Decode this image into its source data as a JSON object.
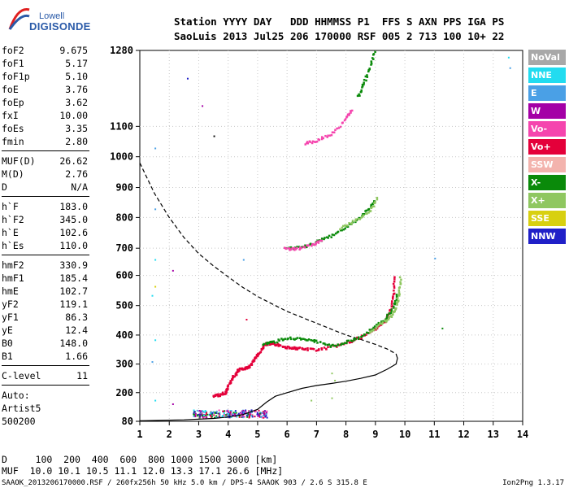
{
  "logo": {
    "line1": "Lowell",
    "line2": "DIGISONDE"
  },
  "header": {
    "line1": "Station YYYY DAY   DDD HHMMSS P1  FFS S AXN PPS IGA PS",
    "line2": "SaoLuis 2013 Jul25 206 170000 RSF 005 2 713 100 10+ 22"
  },
  "params": [
    {
      "label": "foF2",
      "value": "9.675"
    },
    {
      "label": "foF1",
      "value": "5.17"
    },
    {
      "label": "foF1p",
      "value": "5.10"
    },
    {
      "label": "foE",
      "value": "3.76"
    },
    {
      "label": "foEp",
      "value": "3.62"
    },
    {
      "label": "fxI",
      "value": "10.00"
    },
    {
      "label": "foEs",
      "value": "3.35"
    },
    {
      "label": "fmin",
      "value": "2.80"
    },
    {
      "sep": true
    },
    {
      "label": "MUF(D)",
      "value": "26.62"
    },
    {
      "label": "M(D)",
      "value": "2.76"
    },
    {
      "label": "D",
      "value": "N/A"
    },
    {
      "sep": true
    },
    {
      "label": "h`F",
      "value": "183.0"
    },
    {
      "label": "h`F2",
      "value": "345.0"
    },
    {
      "label": "h`E",
      "value": "102.6"
    },
    {
      "label": "h`Es",
      "value": "110.0"
    },
    {
      "sep": true
    },
    {
      "label": "hmF2",
      "value": "330.9"
    },
    {
      "label": "hmF1",
      "value": "185.4"
    },
    {
      "label": "hmE",
      "value": "102.7"
    },
    {
      "label": "yF2",
      "value": "119.1"
    },
    {
      "label": "yF1",
      "value": "86.3"
    },
    {
      "label": "yE",
      "value": "12.4"
    },
    {
      "label": "B0",
      "value": "148.0"
    },
    {
      "label": "B1",
      "value": "1.66"
    },
    {
      "sep": true
    },
    {
      "label": "C-level",
      "value": "11"
    },
    {
      "sep": true
    }
  ],
  "autoscaling": {
    "line1": "Auto:",
    "line2": "Artist5",
    "line3": "500200"
  },
  "legend": [
    {
      "label": "NoVal",
      "color": "#a8a8a8"
    },
    {
      "label": "NNE",
      "color": "#22dcf0"
    },
    {
      "label": "E",
      "color": "#4aa0e6"
    },
    {
      "label": "W",
      "color": "#a400a6"
    },
    {
      "label": "Vo-",
      "color": "#f545ae"
    },
    {
      "label": "Vo+",
      "color": "#e4003a"
    },
    {
      "label": "SSW",
      "color": "#f3b3ad"
    },
    {
      "label": "X-",
      "color": "#0a8a0a"
    },
    {
      "label": "X+",
      "color": "#8fc760"
    },
    {
      "label": "SSE",
      "color": "#d8d010"
    },
    {
      "label": "NNW",
      "color": "#2020c8"
    }
  ],
  "bottom": {
    "distance_line": "D     100  200  400  600  800 1000 1500 3000 [km]",
    "muf_line": "MUF  10.0 10.1 10.5 11.1 12.0 13.3 17.1 26.6 [MHz]"
  },
  "footer": {
    "left": "SAAOK_2013206170000.RSF / 260fx256h 50 kHz 5.0 km / DPS-4 SAAOK 903 / 2.6 S 315.8 E",
    "right": "Ion2Png 1.3.17"
  },
  "chart_data": {
    "type": "scatter",
    "x_ticks": [
      "1",
      "2",
      "3",
      "4",
      "5",
      "6",
      "7",
      "8",
      "9",
      "10",
      "11",
      "12",
      "13",
      "14"
    ],
    "y_ticks": [
      "80",
      "200",
      "300",
      "400",
      "500",
      "600",
      "700",
      "800",
      "900",
      "1000",
      "1100",
      "1280"
    ],
    "xlim": [
      1,
      14
    ],
    "ylim": [
      80,
      1280
    ],
    "y_nonlinear_ticks": [
      [
        80,
        0
      ],
      [
        200,
        0.0773
      ],
      [
        300,
        0.1543
      ],
      [
        400,
        0.2326
      ],
      [
        500,
        0.3121
      ],
      [
        600,
        0.3935
      ],
      [
        700,
        0.4667
      ],
      [
        800,
        0.5496
      ],
      [
        900,
        0.6304
      ],
      [
        1000,
        0.7134
      ],
      [
        1100,
        0.7953
      ],
      [
        1280,
        1.0
      ]
    ],
    "grid": true,
    "series": [
      {
        "kind": "line",
        "dash": false,
        "color": "#000000",
        "points": [
          [
            1.0,
            82
          ],
          [
            2.5,
            86
          ],
          [
            3.5,
            92
          ],
          [
            4.0,
            98
          ],
          [
            4.5,
            108
          ],
          [
            5.0,
            130
          ],
          [
            5.3,
            160
          ],
          [
            5.6,
            185
          ],
          [
            6.0,
            200
          ],
          [
            6.5,
            215
          ],
          [
            7.0,
            225
          ],
          [
            7.5,
            232
          ],
          [
            8.0,
            240
          ],
          [
            8.5,
            250
          ],
          [
            9.0,
            262
          ],
          [
            9.4,
            282
          ],
          [
            9.7,
            300
          ],
          [
            9.75,
            320
          ],
          [
            9.7,
            335
          ]
        ]
      },
      {
        "kind": "line",
        "dash": true,
        "color": "#000000",
        "points": [
          [
            1.0,
            980
          ],
          [
            1.5,
            880
          ],
          [
            2.0,
            800
          ],
          [
            2.5,
            735
          ],
          [
            3.0,
            680
          ],
          [
            3.5,
            635
          ],
          [
            4.0,
            595
          ],
          [
            4.5,
            560
          ],
          [
            5.0,
            530
          ],
          [
            5.5,
            505
          ],
          [
            6.0,
            480
          ],
          [
            6.5,
            460
          ],
          [
            7.0,
            440
          ],
          [
            7.5,
            420
          ],
          [
            8.0,
            400
          ],
          [
            8.5,
            385
          ],
          [
            9.0,
            368
          ],
          [
            9.4,
            352
          ],
          [
            9.7,
            335
          ]
        ]
      },
      {
        "kind": "trace",
        "color": "#e4003a",
        "points": [
          [
            3.5,
            188
          ],
          [
            3.7,
            190
          ],
          [
            3.9,
            200
          ],
          [
            4.0,
            220
          ],
          [
            4.1,
            245
          ],
          [
            4.25,
            265
          ],
          [
            4.35,
            280
          ],
          [
            4.55,
            285
          ],
          [
            4.7,
            290
          ],
          [
            4.85,
            310
          ],
          [
            5.0,
            330
          ],
          [
            5.15,
            355
          ],
          [
            5.3,
            370
          ],
          [
            5.5,
            372
          ],
          [
            5.7,
            365
          ],
          [
            6.0,
            358
          ],
          [
            6.3,
            355
          ],
          [
            6.6,
            352
          ],
          [
            7.0,
            350
          ],
          [
            7.5,
            358
          ],
          [
            8.0,
            372
          ],
          [
            8.5,
            392
          ],
          [
            9.0,
            420
          ],
          [
            9.3,
            445
          ],
          [
            9.5,
            480
          ],
          [
            9.6,
            530
          ],
          [
            9.65,
            600
          ]
        ]
      },
      {
        "kind": "trace",
        "color": "#0a8a0a",
        "points": [
          [
            5.2,
            370
          ],
          [
            5.5,
            375
          ],
          [
            6.0,
            390
          ],
          [
            6.5,
            385
          ],
          [
            7.0,
            378
          ],
          [
            7.5,
            362
          ],
          [
            8.0,
            375
          ],
          [
            8.5,
            393
          ],
          [
            9.0,
            430
          ],
          [
            9.3,
            450
          ],
          [
            9.6,
            490
          ],
          [
            9.75,
            545
          ]
        ]
      },
      {
        "kind": "trace",
        "color": "#8fc760",
        "points": [
          [
            8.8,
            410
          ],
          [
            9.2,
            440
          ],
          [
            9.5,
            460
          ],
          [
            9.7,
            490
          ],
          [
            9.8,
            540
          ],
          [
            9.85,
            600
          ]
        ]
      },
      {
        "kind": "trace",
        "color": "#0a8a0a",
        "points": [
          [
            6.0,
            698
          ],
          [
            6.5,
            703
          ],
          [
            7.0,
            720
          ],
          [
            7.5,
            740
          ],
          [
            8.0,
            770
          ],
          [
            8.5,
            800
          ],
          [
            8.8,
            830
          ],
          [
            9.0,
            860
          ]
        ]
      },
      {
        "kind": "trace",
        "color": "#f545ae",
        "points": [
          [
            5.9,
            698
          ],
          [
            6.3,
            696
          ],
          [
            6.8,
            710
          ],
          [
            7.2,
            725
          ]
        ]
      },
      {
        "kind": "trace",
        "color": "#8fc760",
        "points": [
          [
            7.8,
            765
          ],
          [
            8.3,
            790
          ],
          [
            8.8,
            820
          ],
          [
            9.1,
            870
          ]
        ]
      },
      {
        "kind": "trace",
        "color": "#0a8a0a",
        "points": [
          [
            8.4,
            1170
          ],
          [
            8.6,
            1200
          ],
          [
            8.8,
            1240
          ],
          [
            9.0,
            1280
          ]
        ]
      },
      {
        "kind": "trace",
        "color": "#f545ae",
        "points": [
          [
            6.6,
            1045
          ],
          [
            7.0,
            1052
          ],
          [
            7.5,
            1075
          ],
          [
            8.0,
            1120
          ],
          [
            8.2,
            1140
          ]
        ]
      }
    ],
    "scatter_points": [
      {
        "x": 2.6,
        "y": 1215,
        "color": "#2020c8"
      },
      {
        "x": 3.1,
        "y": 1150,
        "color": "#a400a6"
      },
      {
        "x": 3.5,
        "y": 1070,
        "color": "#0a0a0a"
      },
      {
        "x": 1.5,
        "y": 1030,
        "color": "#4aa0e6"
      },
      {
        "x": 1.5,
        "y": 830,
        "color": "#4aa0e6"
      },
      {
        "x": 1.5,
        "y": 660,
        "color": "#22dcf0"
      },
      {
        "x": 2.1,
        "y": 620,
        "color": "#a400a6"
      },
      {
        "x": 1.5,
        "y": 565,
        "color": "#d8d010"
      },
      {
        "x": 1.4,
        "y": 535,
        "color": "#22dcf0"
      },
      {
        "x": 4.5,
        "y": 660,
        "color": "#4aa0e6"
      },
      {
        "x": 4.6,
        "y": 455,
        "color": "#e4003a"
      },
      {
        "x": 11.0,
        "y": 665,
        "color": "#4aa0e6"
      },
      {
        "x": 11.25,
        "y": 425,
        "color": "#0a8a0a"
      },
      {
        "x": 13.5,
        "y": 1265,
        "color": "#22dcf0"
      },
      {
        "x": 13.55,
        "y": 1240,
        "color": "#4aa0e6"
      },
      {
        "x": 1.5,
        "y": 385,
        "color": "#22dcf0"
      },
      {
        "x": 1.4,
        "y": 310,
        "color": "#4aa0e6"
      },
      {
        "x": 1.5,
        "y": 170,
        "color": "#22dcf0"
      },
      {
        "x": 2.1,
        "y": 155,
        "color": "#a400a6"
      },
      {
        "x": 6.8,
        "y": 170,
        "color": "#8fc760"
      },
      {
        "x": 7.5,
        "y": 180,
        "color": "#8fc760"
      },
      {
        "x": 7.6,
        "y": 245,
        "color": "#8fc760"
      },
      {
        "x": 7.5,
        "y": 270,
        "color": "#8fc760"
      }
    ],
    "low_band": {
      "x_from": 2.8,
      "x_to": 5.3,
      "y_from": 98,
      "y_to": 130,
      "colors": [
        "#2020c8",
        "#a400a6",
        "#e4003a",
        "#0a8a0a",
        "#22dcf0",
        "#f545ae",
        "#4aa0e6"
      ]
    }
  }
}
